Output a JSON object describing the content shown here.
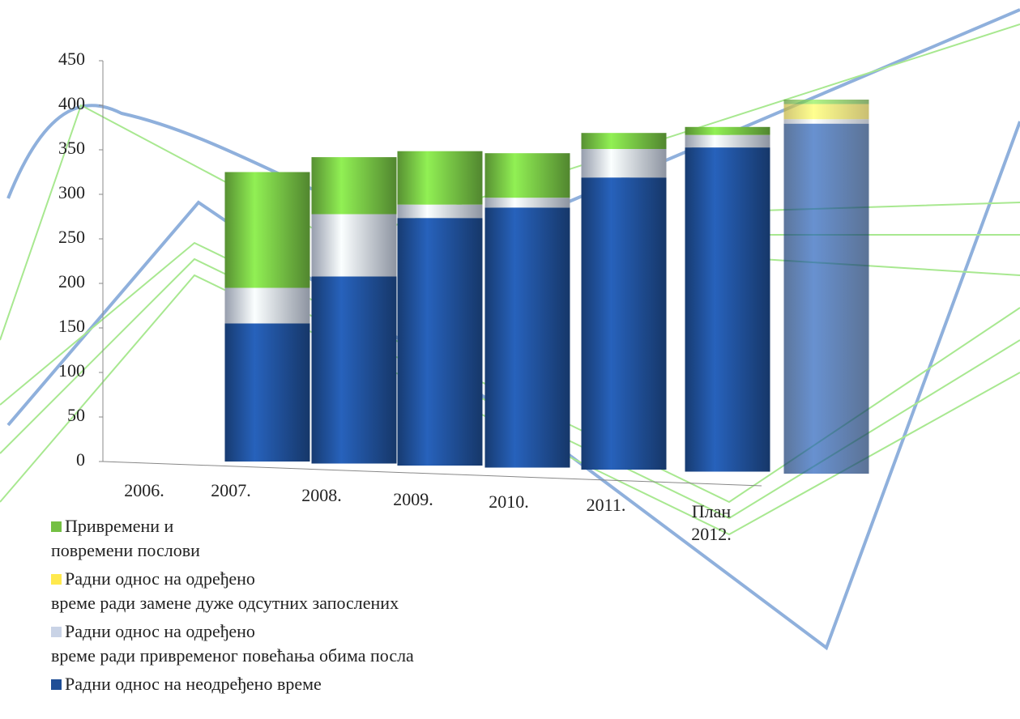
{
  "chart_data": {
    "type": "stacked_bar",
    "categories": [
      "2006.",
      "2007.",
      "2008.",
      "2009.",
      "2010.",
      "2011.",
      "План\n2012."
    ],
    "series": [
      {
        "name": "Привремени и\nповремени послови",
        "color": "#74c043",
        "values": [
          130,
          64,
          60,
          50,
          18,
          9,
          5
        ]
      },
      {
        "name": "Радни однос на одређено\nвреме ради замене дуже одсутних запослених",
        "color": "#ffe94d",
        "values": [
          0,
          0,
          0,
          0,
          0,
          0,
          17
        ]
      },
      {
        "name": "Радни однос на одређено\nвреме ради привременог повећања обима посла",
        "color": "#c9d3e6",
        "values": [
          40,
          70,
          15,
          11,
          32,
          14,
          5
        ]
      },
      {
        "name": "Радни однос на неодређено време",
        "color": "#1f4e96",
        "values": [
          155,
          210,
          278,
          292,
          328,
          364,
          393
        ]
      }
    ],
    "ylim": [
      0,
      450
    ],
    "yticks": [
      0,
      50,
      100,
      150,
      200,
      250,
      300,
      350,
      400,
      450
    ]
  }
}
